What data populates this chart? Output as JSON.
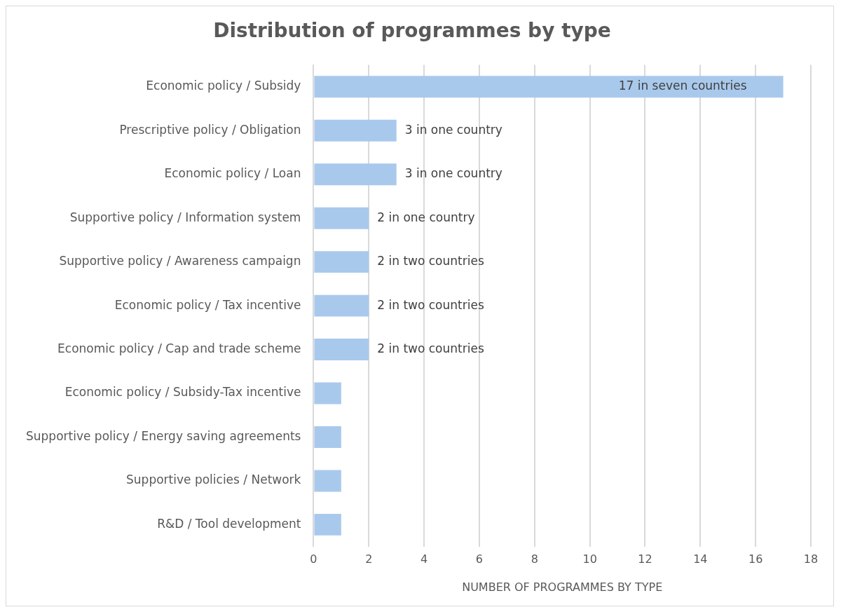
{
  "chart_data": {
    "type": "bar",
    "orientation": "horizontal",
    "title": "Distribution of programmes by type",
    "xlabel": "NUMBER OF PROGRAMMES BY TYPE",
    "categories": [
      "Economic policy / Subsidy",
      "Prescriptive policy / Obligation",
      "Economic policy / Loan",
      "Supportive policy / Information system",
      "Supportive policy / Awareness campaign",
      "Economic policy / Tax incentive",
      "Economic policy / Cap and trade scheme",
      "Economic policy / Subsidy-Tax incentive",
      "Supportive policy / Energy saving agreements",
      "Supportive policies / Network",
      "R&D / Tool development"
    ],
    "values": [
      17,
      3,
      3,
      2,
      2,
      2,
      2,
      1,
      1,
      1,
      1
    ],
    "value_labels": [
      "17 in seven countries",
      "3 in one country",
      "3 in one country",
      "2 in one country",
      "2 in two countries",
      "2 in two countries",
      "2 in two countries",
      null,
      null,
      null,
      null
    ],
    "color": "#a9c9ec",
    "xlim": [
      0,
      18
    ],
    "xticks": [
      0,
      2,
      4,
      6,
      8,
      10,
      12,
      14,
      16,
      18
    ],
    "grid": "x"
  }
}
